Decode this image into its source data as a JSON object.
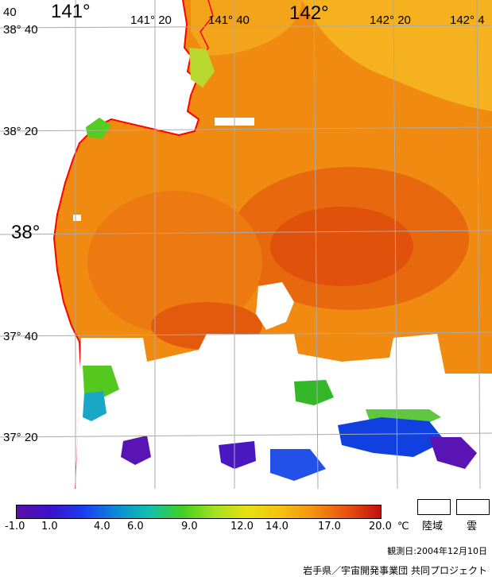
{
  "map": {
    "longitude_labels": [
      {
        "text": "40",
        "size": "small"
      },
      {
        "text": "141°",
        "size": "big"
      },
      {
        "text": "141° 20",
        "size": "small"
      },
      {
        "text": "141° 40",
        "size": "small"
      },
      {
        "text": "142°",
        "size": "big"
      },
      {
        "text": "142° 20",
        "size": "small"
      },
      {
        "text": "142° 4",
        "size": "small"
      }
    ],
    "latitude_labels": [
      {
        "text": "38° 40",
        "size": "small"
      },
      {
        "text": "38° 20",
        "size": "small"
      },
      {
        "text": "38°",
        "size": "big"
      },
      {
        "text": "37° 40",
        "size": "small"
      },
      {
        "text": "37° 20",
        "size": "small"
      }
    ],
    "colors": {
      "sea_warm": "#f08a10",
      "sea_hot": "#e35a10",
      "sea_mild": "#f5a81c",
      "sea_yellow": "#f0c020",
      "coast": "#ff0000",
      "grid": "#aaaaaa",
      "cloud": "#ffffff",
      "green": "#55d020",
      "cyan": "#19a7c8",
      "blue": "#1040e0",
      "purple": "#5a14b4"
    }
  },
  "legend": {
    "colorbar_stops": [
      "#5a0fa8",
      "#3b12c8",
      "#1c3cf0",
      "#0a8ad6",
      "#10c0b0",
      "#40d020",
      "#a8e020",
      "#e8e010",
      "#f5c010",
      "#f39010",
      "#e85010",
      "#c01010"
    ],
    "tick_labels": [
      "-1.0",
      "1.0",
      "4.0",
      "6.0",
      "9.0",
      "12.0",
      "14.0",
      "17.0",
      "20.0"
    ],
    "unit": "℃",
    "land_label": "陸域",
    "cloud_label": "雲",
    "observation_date": "観測日:2004年12月10日",
    "credit": "岩手県／宇宙開発事業団 共同プロジェクト"
  }
}
